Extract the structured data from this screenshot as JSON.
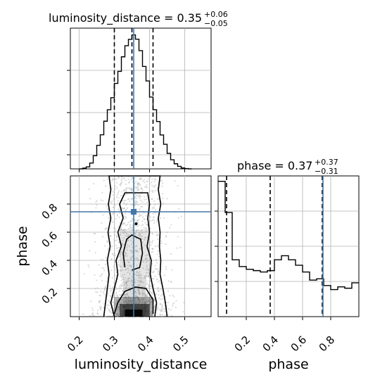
{
  "colors": {
    "truth": "#4477aa",
    "hist": "#000000",
    "quantile": "#000000",
    "samples": "#bdbdbd"
  },
  "chart_data": [
    {
      "panel": "luminosity_distance-marginal",
      "type": "histogram",
      "title_prefix": "luminosity_distance = 0.35",
      "title_sup": "+0.06",
      "title_sub": "−0.05",
      "xlim": [
        0.175,
        0.575
      ],
      "bin_edges": [
        0.2,
        0.21,
        0.22,
        0.23,
        0.24,
        0.25,
        0.26,
        0.27,
        0.28,
        0.29,
        0.3,
        0.31,
        0.32,
        0.33,
        0.34,
        0.35,
        0.36,
        0.37,
        0.38,
        0.39,
        0.4,
        0.41,
        0.42,
        0.43,
        0.44,
        0.45,
        0.46,
        0.47,
        0.48,
        0.49,
        0.5,
        0.51,
        0.52
      ],
      "counts": [
        0,
        0.5,
        1.3,
        3.8,
        8.5,
        15.2,
        22.0,
        30.8,
        38.2,
        46.0,
        55.2,
        63.0,
        72.4,
        79.6,
        83.7,
        86.6,
        83.8,
        76.4,
        66.2,
        56.8,
        46.4,
        38.2,
        30.6,
        21.9,
        15.9,
        10.0,
        5.9,
        3.3,
        1.6,
        0.6,
        0.2,
        0
      ],
      "quantiles": [
        0.3,
        0.35,
        0.41
      ],
      "truth": 0.355
    },
    {
      "panel": "phase-marginal",
      "type": "histogram",
      "title_prefix": "phase = 0.37",
      "title_sup": "+0.37",
      "title_sub": "−0.31",
      "xlim": [
        0.0,
        1.0
      ],
      "bin_edges": [
        0.0,
        0.05,
        0.1,
        0.15,
        0.2,
        0.25,
        0.3,
        0.35,
        0.4,
        0.45,
        0.5,
        0.55,
        0.6,
        0.65,
        0.7,
        0.75,
        0.8,
        0.85,
        0.9,
        0.95,
        1.0
      ],
      "counts": [
        1.0,
        0.77,
        0.42,
        0.37,
        0.35,
        0.34,
        0.33,
        0.34,
        0.42,
        0.45,
        0.42,
        0.38,
        0.33,
        0.27,
        0.28,
        0.23,
        0.2,
        0.22,
        0.21,
        0.25
      ],
      "quantiles": [
        0.06,
        0.37,
        0.74
      ],
      "truth": 0.745,
      "xticks": [
        "0.2",
        "0.4",
        "0.6",
        "0.8"
      ],
      "xlabel": "phase"
    },
    {
      "panel": "2d-density",
      "type": "scatter",
      "x_param": "luminosity_distance",
      "y_param": "phase",
      "xlim": [
        0.175,
        0.575
      ],
      "ylim": [
        0.0,
        1.0
      ],
      "xticks": [
        "0.2",
        "0.3",
        "0.4",
        "0.5"
      ],
      "yticks": [
        "0.2",
        "0.4",
        "0.6",
        "0.8"
      ],
      "xlabel": "luminosity_distance",
      "ylabel": "phase",
      "truth": [
        0.355,
        0.745
      ],
      "contours": [
        [
          [
            0.27,
            0.0
          ],
          [
            0.275,
            0.1
          ],
          [
            0.28,
            0.2
          ],
          [
            0.285,
            0.3
          ],
          [
            0.28,
            0.4
          ],
          [
            0.288,
            0.5
          ],
          [
            0.282,
            0.6
          ],
          [
            0.29,
            0.7
          ],
          [
            0.283,
            0.8
          ],
          [
            0.29,
            0.9
          ],
          [
            0.285,
            1.0
          ],
          [
            0.43,
            1.0
          ],
          [
            0.425,
            0.9
          ],
          [
            0.432,
            0.8
          ],
          [
            0.425,
            0.7
          ],
          [
            0.43,
            0.6
          ],
          [
            0.428,
            0.5
          ],
          [
            0.432,
            0.4
          ],
          [
            0.43,
            0.3
          ],
          [
            0.438,
            0.2
          ],
          [
            0.445,
            0.1
          ],
          [
            0.45,
            0.0
          ]
        ],
        [
          [
            0.3,
            0.0
          ],
          [
            0.29,
            0.1
          ],
          [
            0.3,
            0.2
          ],
          [
            0.31,
            0.3
          ],
          [
            0.305,
            0.4
          ],
          [
            0.32,
            0.5
          ],
          [
            0.31,
            0.6
          ],
          [
            0.325,
            0.7
          ],
          [
            0.315,
            0.8
          ],
          [
            0.33,
            0.88
          ],
          [
            0.395,
            0.88
          ],
          [
            0.4,
            0.8
          ],
          [
            0.395,
            0.7
          ],
          [
            0.4,
            0.6
          ],
          [
            0.393,
            0.5
          ],
          [
            0.405,
            0.4
          ],
          [
            0.402,
            0.3
          ],
          [
            0.41,
            0.2
          ],
          [
            0.42,
            0.1
          ],
          [
            0.415,
            0.0
          ]
        ],
        [
          [
            0.3,
            0.02
          ],
          [
            0.31,
            0.1
          ],
          [
            0.33,
            0.18
          ],
          [
            0.36,
            0.21
          ],
          [
            0.39,
            0.2
          ],
          [
            0.41,
            0.12
          ],
          [
            0.41,
            0.02
          ]
        ],
        [
          [
            0.33,
            0.35
          ],
          [
            0.325,
            0.45
          ],
          [
            0.335,
            0.55
          ],
          [
            0.35,
            0.58
          ],
          [
            0.375,
            0.55
          ],
          [
            0.38,
            0.45
          ],
          [
            0.372,
            0.35
          ],
          [
            0.35,
            0.33
          ]
        ]
      ]
    }
  ]
}
